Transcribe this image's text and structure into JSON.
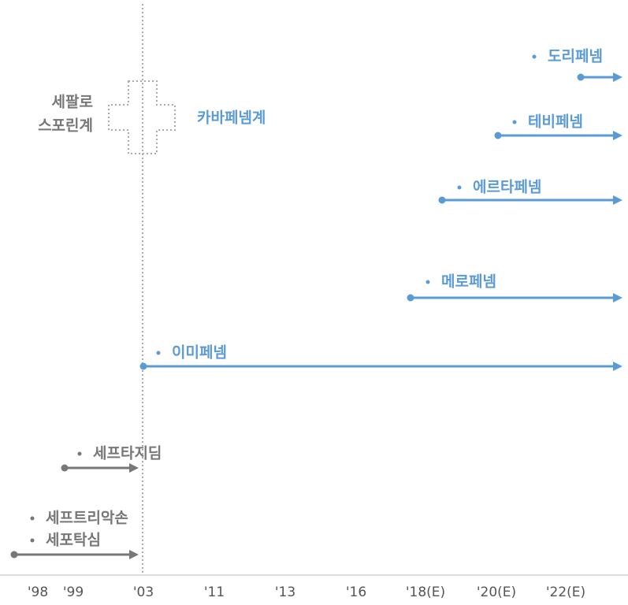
{
  "group_labels": {
    "cephalosporin": [
      "세팔로",
      "스포린계"
    ],
    "carbapenem": "카바페넴계"
  },
  "drugs": [
    "도리페넴",
    "테비페넴",
    "에르타페넴",
    "메로페넴",
    "이미페넴",
    "세프타지딤",
    "세프트리악손",
    "세포탁심"
  ],
  "axis_labels": [
    "'98",
    "'99",
    "'03",
    "'11",
    "'13",
    "'16",
    "'18(E)",
    "'20(E)",
    "'22(E)"
  ]
}
